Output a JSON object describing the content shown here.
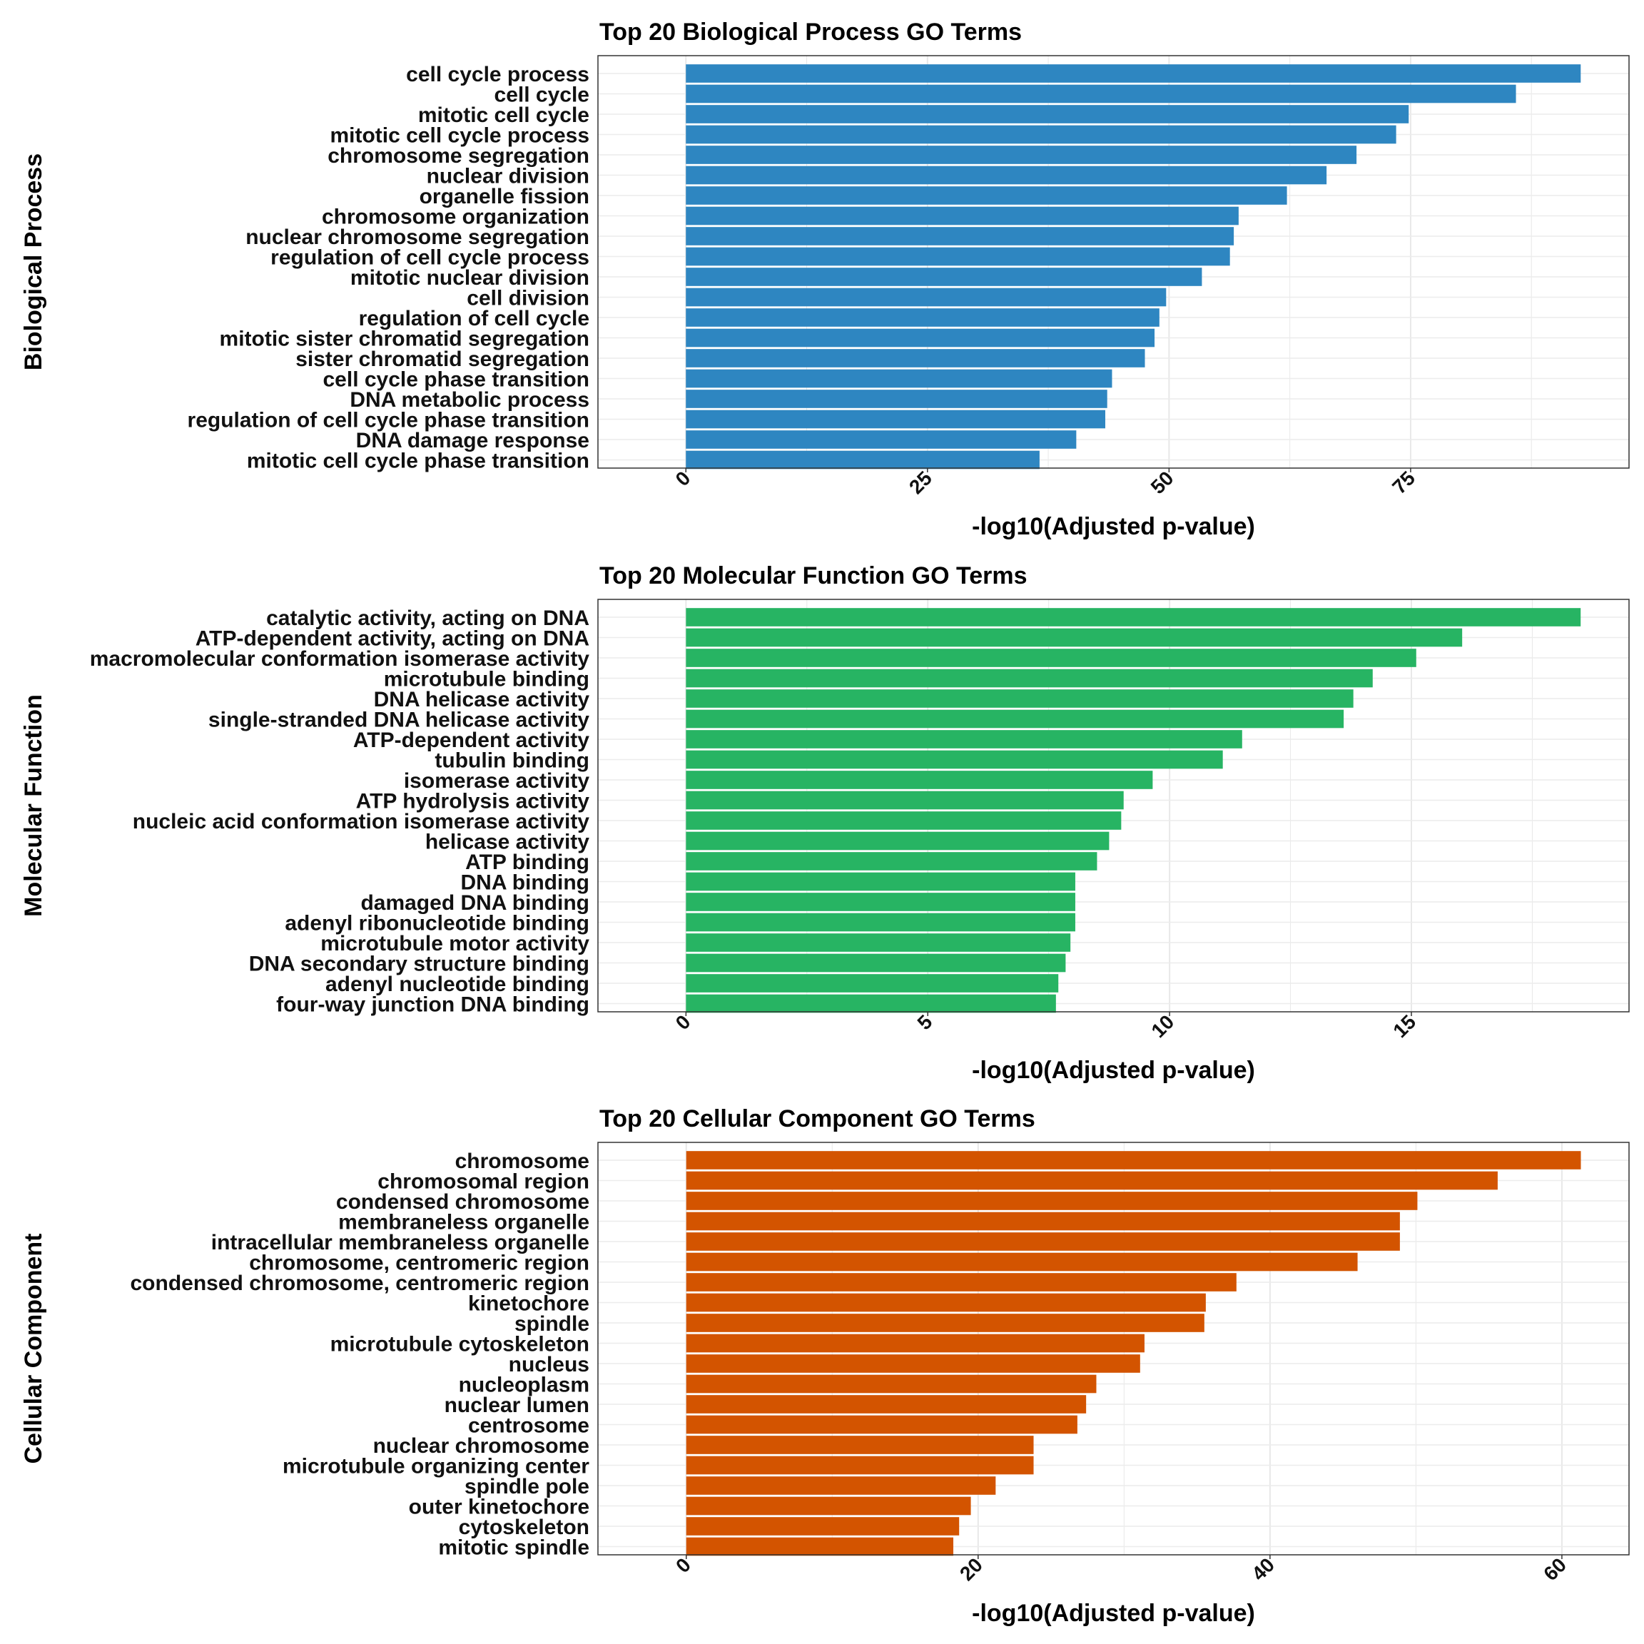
{
  "chart_data": [
    {
      "type": "bar",
      "orientation": "horizontal",
      "title": "Top 20 Biological Process GO Terms",
      "xlabel": "-log10(Adjusted p-value)",
      "ylabel": "Biological Process",
      "color": "#2E86C1",
      "xlim": [
        -9.1,
        97.6
      ],
      "xticks": [
        0,
        25,
        50,
        75
      ],
      "grid": true,
      "legend": "none",
      "categories": [
        "cell cycle process",
        "cell cycle",
        "mitotic cell cycle",
        "mitotic cell cycle process",
        "chromosome segregation",
        "nuclear division",
        "organelle fission",
        "chromosome organization",
        "nuclear chromosome segregation",
        "regulation of cell cycle process",
        "mitotic nuclear division",
        "cell division",
        "regulation of cell cycle",
        "mitotic sister chromatid segregation",
        "sister chromatid segregation",
        "cell cycle phase transition",
        "DNA metabolic process",
        "regulation of cell cycle phase transition",
        "DNA damage response",
        "mitotic cell cycle phase transition"
      ],
      "values": [
        92.6,
        85.9,
        74.8,
        73.5,
        69.4,
        66.3,
        62.2,
        57.2,
        56.7,
        56.3,
        53.4,
        49.7,
        49.0,
        48.5,
        47.5,
        44.1,
        43.6,
        43.4,
        40.4,
        36.6
      ]
    },
    {
      "type": "bar",
      "orientation": "horizontal",
      "title": "Top 20 Molecular Function GO Terms",
      "xlabel": "-log10(Adjusted p-value)",
      "ylabel": "Molecular Function",
      "color": "#27B463",
      "xlim": [
        -1.82,
        19.5
      ],
      "xticks": [
        0,
        5,
        10,
        15
      ],
      "grid": true,
      "legend": "none",
      "categories": [
        "catalytic activity, acting on DNA",
        "ATP-dependent activity, acting on DNA",
        "macromolecular conformation isomerase activity",
        "microtubule binding",
        "DNA helicase activity",
        "single-stranded DNA helicase activity",
        "ATP-dependent activity",
        "tubulin binding",
        "isomerase activity",
        "ATP hydrolysis activity",
        "nucleic acid conformation isomerase activity",
        "helicase activity",
        "ATP binding",
        "DNA binding",
        "damaged DNA binding",
        "adenyl ribonucleotide binding",
        "microtubule motor activity",
        "DNA secondary structure binding",
        "adenyl nucleotide binding",
        "four-way junction DNA binding"
      ],
      "values": [
        18.5,
        16.05,
        15.1,
        14.2,
        13.8,
        13.6,
        11.5,
        11.1,
        9.65,
        9.05,
        9.0,
        8.75,
        8.5,
        8.05,
        8.05,
        8.05,
        7.95,
        7.85,
        7.7,
        7.65
      ]
    },
    {
      "type": "bar",
      "orientation": "horizontal",
      "title": "Top 20 Cellular Component GO Terms",
      "xlabel": "-log10(Adjusted p-value)",
      "ylabel": "Cellular Component",
      "color": "#D35400",
      "xlim": [
        -6.05,
        64.6
      ],
      "xticks": [
        0,
        20,
        40,
        60
      ],
      "grid": true,
      "legend": "none",
      "categories": [
        "chromosome",
        "chromosomal region",
        "condensed chromosome",
        "membraneless organelle",
        "intracellular membraneless organelle",
        "chromosome, centromeric region",
        "condensed chromosome, centromeric region",
        "kinetochore",
        "spindle",
        "microtubule cytoskeleton",
        "nucleus",
        "nucleoplasm",
        "nuclear lumen",
        "centrosome",
        "nuclear chromosome",
        "microtubule organizing center",
        "spindle pole",
        "outer kinetochore",
        "cytoskeleton",
        "mitotic spindle"
      ],
      "values": [
        61.3,
        55.6,
        50.1,
        48.9,
        48.9,
        46.0,
        37.7,
        35.6,
        35.5,
        31.4,
        31.1,
        28.1,
        27.4,
        26.8,
        23.8,
        23.8,
        21.2,
        19.5,
        18.7,
        18.3
      ]
    }
  ]
}
